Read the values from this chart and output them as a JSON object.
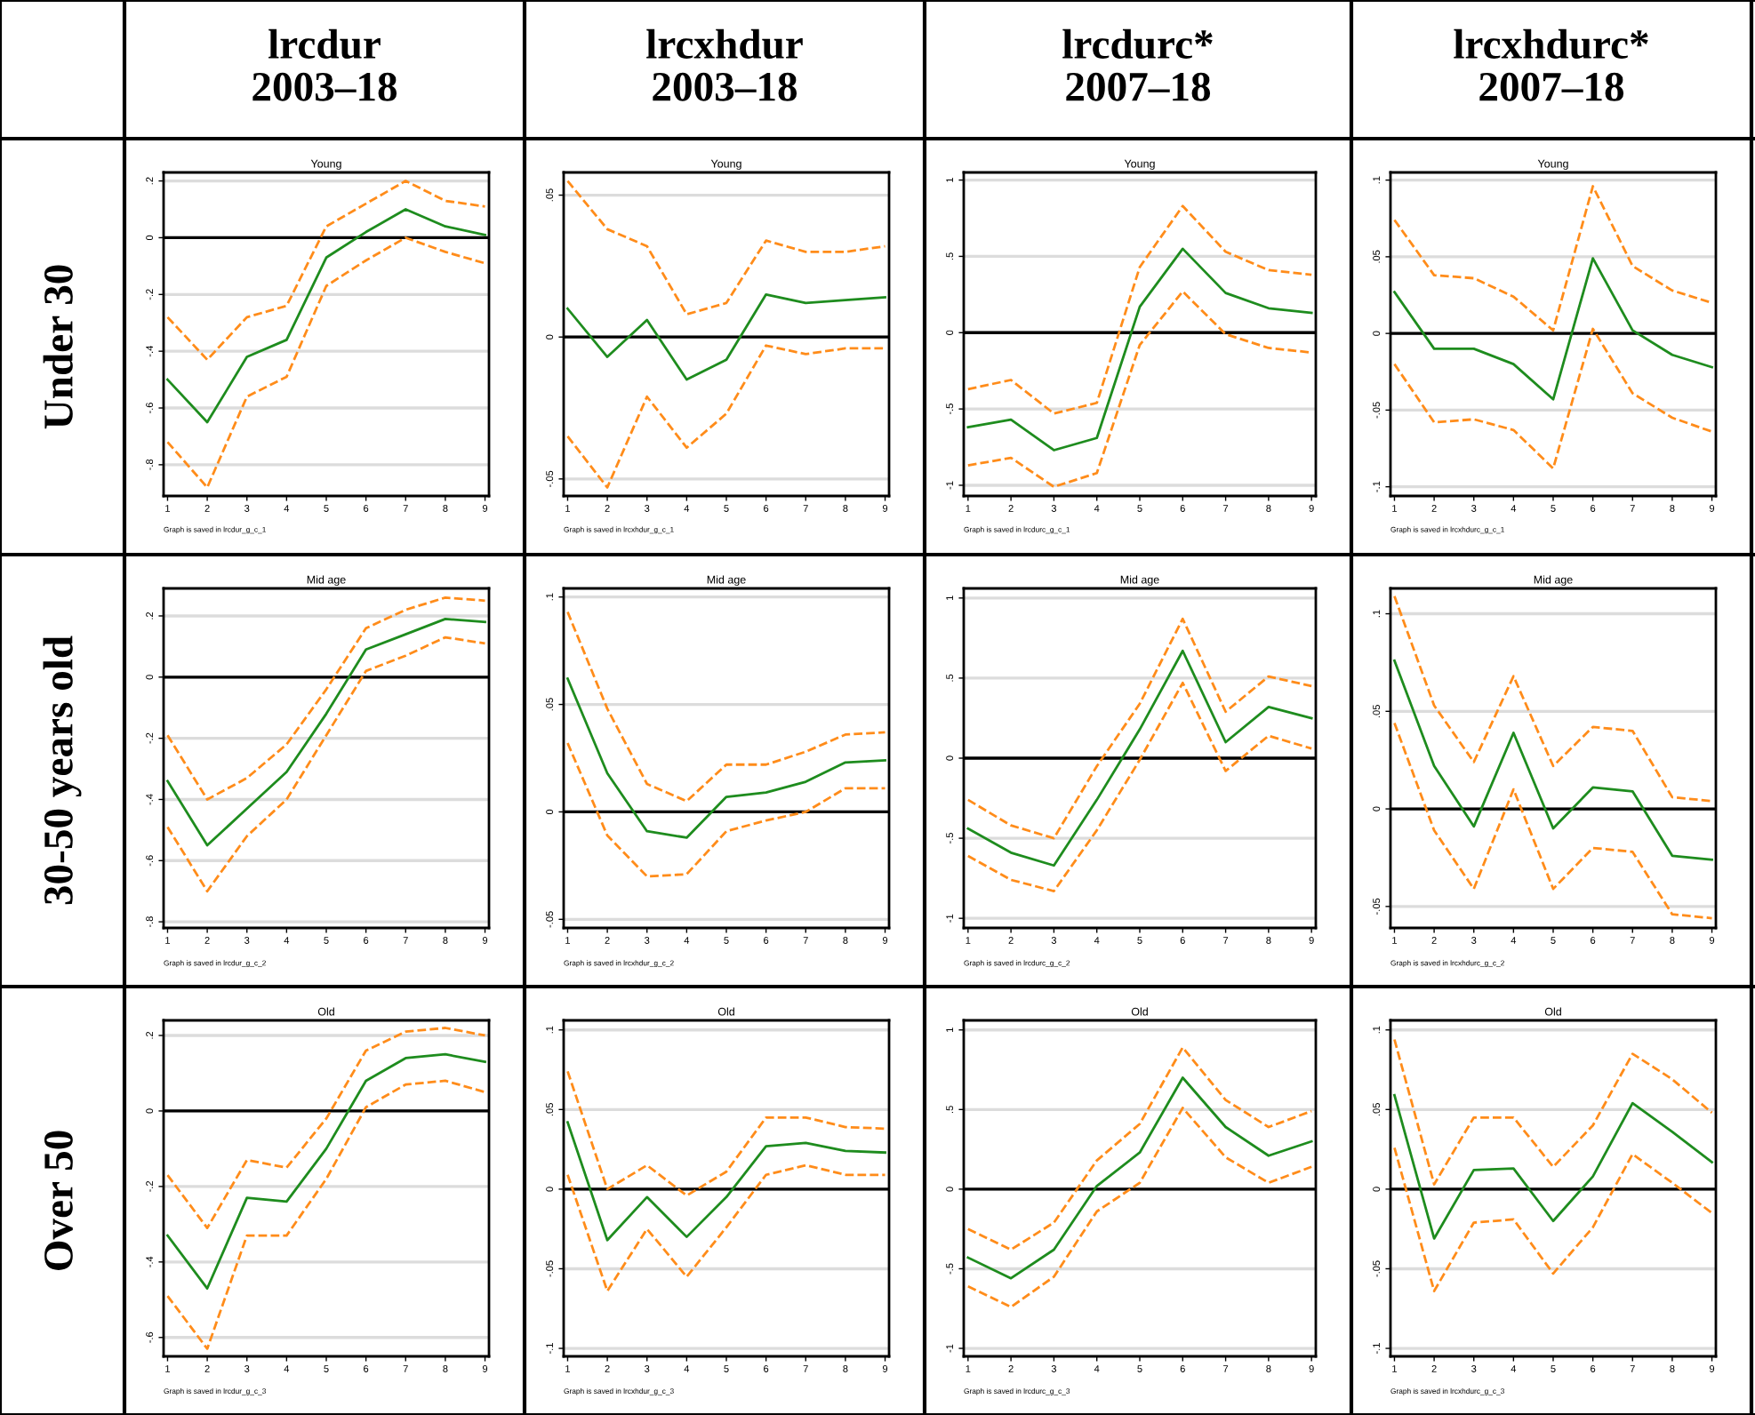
{
  "chart_data": [
    {
      "type": "other",
      "title": "lrcdur",
      "subtitle": "2003–18"
    },
    {
      "type": "other",
      "title": "lrcxhdur",
      "subtitle": "2003–18"
    },
    {
      "type": "other",
      "title": "lrcdurc*",
      "subtitle": "2007–18"
    },
    {
      "type": "other",
      "title": "lrcxhdurc*",
      "subtitle": "2007–18"
    },
    {
      "type": "other",
      "title": "Under 30"
    },
    {
      "type": "line",
      "title": "Young",
      "annotations": [
        "Graph is saved in lrcdur_g_c_1"
      ],
      "x": [
        1,
        2,
        3,
        4,
        5,
        6,
        7,
        8,
        9
      ],
      "xlim": [
        0.9,
        9.1
      ],
      "xticks": [
        1,
        2,
        3,
        4,
        5,
        6,
        7,
        8,
        9
      ],
      "ylim": [
        -0.91,
        0.23
      ],
      "yticks": [
        {
          "value": 0.2,
          "label": ".2"
        },
        0,
        {
          "value": -0.2,
          "label": "-.2"
        },
        {
          "value": -0.4,
          "label": "-.4"
        },
        {
          "value": -0.6,
          "label": "-.6"
        },
        {
          "value": -0.8,
          "label": "-.8"
        }
      ],
      "grid": "y",
      "ref_lines": [
        {
          "axis": "y",
          "value": 0,
          "color": "#000000"
        }
      ],
      "series": [
        {
          "color": "#1e8c1e",
          "line_style": "solid",
          "values": [
            -0.5,
            -0.65,
            -0.42,
            -0.36,
            -0.07,
            0.02,
            0.1,
            0.04,
            0.01
          ]
        },
        {
          "color": "#ff8c1a",
          "line_style": "dashed",
          "values": [
            -0.28,
            -0.43,
            -0.28,
            -0.24,
            0.04,
            0.12,
            0.2,
            0.13,
            0.11
          ]
        },
        {
          "color": "#ff8c1a",
          "line_style": "dashed",
          "values": [
            -0.72,
            -0.88,
            -0.56,
            -0.49,
            -0.17,
            -0.08,
            0.0,
            -0.05,
            -0.09
          ]
        }
      ]
    },
    {
      "type": "line",
      "title": "Young",
      "annotations": [
        "Graph is saved in lrcxhdur_g_c_1"
      ],
      "x": [
        1,
        2,
        3,
        4,
        5,
        6,
        7,
        8,
        9
      ],
      "xlim": [
        0.9,
        9.1
      ],
      "xticks": [
        1,
        2,
        3,
        4,
        5,
        6,
        7,
        8,
        9
      ],
      "ylim": [
        -0.056,
        0.058
      ],
      "yticks": [
        {
          "value": 0.05,
          "label": ".05"
        },
        0,
        {
          "value": -0.05,
          "label": "-.05"
        }
      ],
      "grid": "y",
      "ref_lines": [
        {
          "axis": "y",
          "value": 0,
          "color": "#000000"
        }
      ],
      "series": [
        {
          "color": "#1e8c1e",
          "line_style": "solid",
          "values": [
            0.01,
            -0.007,
            0.006,
            -0.015,
            -0.008,
            0.015,
            0.012,
            0.013,
            0.014
          ]
        },
        {
          "color": "#ff8c1a",
          "line_style": "dashed",
          "values": [
            0.055,
            0.038,
            0.032,
            0.008,
            0.012,
            0.034,
            0.03,
            0.03,
            0.032
          ]
        },
        {
          "color": "#ff8c1a",
          "line_style": "dashed",
          "values": [
            -0.035,
            -0.053,
            -0.021,
            -0.039,
            -0.027,
            -0.003,
            -0.006,
            -0.004,
            -0.004
          ]
        }
      ]
    },
    {
      "type": "line",
      "title": "Young",
      "annotations": [
        "Graph is saved in lrcdurc_g_c_1"
      ],
      "x": [
        1,
        2,
        3,
        4,
        5,
        6,
        7,
        8,
        9
      ],
      "xlim": [
        0.9,
        9.1
      ],
      "xticks": [
        1,
        2,
        3,
        4,
        5,
        6,
        7,
        8,
        9
      ],
      "ylim": [
        -1.07,
        1.05
      ],
      "yticks": [
        1,
        {
          "value": 0.5,
          "label": ".5"
        },
        0,
        {
          "value": -0.5,
          "label": "-.5"
        },
        -1
      ],
      "grid": "y",
      "ref_lines": [
        {
          "axis": "y",
          "value": 0,
          "color": "#000000"
        }
      ],
      "series": [
        {
          "color": "#1e8c1e",
          "line_style": "solid",
          "values": [
            -0.62,
            -0.57,
            -0.77,
            -0.69,
            0.17,
            0.55,
            0.26,
            0.16,
            0.13
          ]
        },
        {
          "color": "#ff8c1a",
          "line_style": "dashed",
          "values": [
            -0.37,
            -0.31,
            -0.53,
            -0.46,
            0.43,
            0.83,
            0.53,
            0.41,
            0.38
          ]
        },
        {
          "color": "#ff8c1a",
          "line_style": "dashed",
          "values": [
            -0.87,
            -0.82,
            -1.01,
            -0.92,
            -0.08,
            0.27,
            -0.01,
            -0.1,
            -0.13
          ]
        }
      ]
    },
    {
      "type": "line",
      "title": "Young",
      "annotations": [
        "Graph is saved in lrcxhdurc_g_c_1"
      ],
      "x": [
        1,
        2,
        3,
        4,
        5,
        6,
        7,
        8,
        9
      ],
      "xlim": [
        0.9,
        9.1
      ],
      "xticks": [
        1,
        2,
        3,
        4,
        5,
        6,
        7,
        8,
        9
      ],
      "ylim": [
        -0.106,
        0.105
      ],
      "yticks": [
        {
          "value": 0.1,
          "label": ".1"
        },
        {
          "value": 0.05,
          "label": ".05"
        },
        0,
        {
          "value": -0.05,
          "label": "-.05"
        },
        {
          "value": -0.1,
          "label": "-.1"
        }
      ],
      "grid": "y",
      "ref_lines": [
        {
          "axis": "y",
          "value": 0,
          "color": "#000000"
        }
      ],
      "series": [
        {
          "color": "#1e8c1e",
          "line_style": "solid",
          "values": [
            0.027,
            -0.01,
            -0.01,
            -0.02,
            -0.043,
            0.049,
            0.002,
            -0.014,
            -0.022
          ]
        },
        {
          "color": "#ff8c1a",
          "line_style": "dashed",
          "values": [
            0.074,
            0.038,
            0.036,
            0.024,
            0.002,
            0.096,
            0.044,
            0.028,
            0.02
          ]
        },
        {
          "color": "#ff8c1a",
          "line_style": "dashed",
          "values": [
            -0.02,
            -0.058,
            -0.056,
            -0.063,
            -0.088,
            0.003,
            -0.039,
            -0.055,
            -0.064
          ]
        }
      ]
    },
    {
      "type": "other",
      "title": "30-50 years old"
    },
    {
      "type": "line",
      "title": "Mid age",
      "annotations": [
        "Graph is saved in lrcdur_g_c_2"
      ],
      "x": [
        1,
        2,
        3,
        4,
        5,
        6,
        7,
        8,
        9
      ],
      "xlim": [
        0.9,
        9.1
      ],
      "xticks": [
        1,
        2,
        3,
        4,
        5,
        6,
        7,
        8,
        9
      ],
      "ylim": [
        -0.82,
        0.29
      ],
      "yticks": [
        {
          "value": 0.2,
          "label": ".2"
        },
        0,
        {
          "value": -0.2,
          "label": "-.2"
        },
        {
          "value": -0.4,
          "label": "-.4"
        },
        {
          "value": -0.6,
          "label": "-.6"
        },
        {
          "value": -0.8,
          "label": "-.8"
        }
      ],
      "grid": "y",
      "ref_lines": [
        {
          "axis": "y",
          "value": 0,
          "color": "#000000"
        }
      ],
      "series": [
        {
          "color": "#1e8c1e",
          "line_style": "solid",
          "values": [
            -0.34,
            -0.55,
            -0.43,
            -0.31,
            -0.12,
            0.09,
            0.14,
            0.19,
            0.18
          ]
        },
        {
          "color": "#ff8c1a",
          "line_style": "dashed",
          "values": [
            -0.19,
            -0.4,
            -0.33,
            -0.22,
            -0.04,
            0.16,
            0.22,
            0.26,
            0.25
          ]
        },
        {
          "color": "#ff8c1a",
          "line_style": "dashed",
          "values": [
            -0.49,
            -0.7,
            -0.52,
            -0.4,
            -0.19,
            0.02,
            0.07,
            0.13,
            0.11
          ]
        }
      ]
    },
    {
      "type": "line",
      "title": "Mid age",
      "annotations": [
        "Graph is saved in lrcxhdur_g_c_2"
      ],
      "x": [
        1,
        2,
        3,
        4,
        5,
        6,
        7,
        8,
        9
      ],
      "xlim": [
        0.9,
        9.1
      ],
      "xticks": [
        1,
        2,
        3,
        4,
        5,
        6,
        7,
        8,
        9
      ],
      "ylim": [
        -0.054,
        0.104
      ],
      "yticks": [
        {
          "value": 0.1,
          "label": ".1"
        },
        {
          "value": 0.05,
          "label": ".05"
        },
        0,
        {
          "value": -0.05,
          "label": "-.05"
        }
      ],
      "grid": "y",
      "ref_lines": [
        {
          "axis": "y",
          "value": 0,
          "color": "#000000"
        }
      ],
      "series": [
        {
          "color": "#1e8c1e",
          "line_style": "solid",
          "values": [
            0.062,
            0.018,
            -0.009,
            -0.012,
            0.007,
            0.009,
            0.014,
            0.023,
            0.024
          ]
        },
        {
          "color": "#ff8c1a",
          "line_style": "dashed",
          "values": [
            0.093,
            0.048,
            0.013,
            0.005,
            0.022,
            0.022,
            0.028,
            0.036,
            0.037
          ]
        },
        {
          "color": "#ff8c1a",
          "line_style": "dashed",
          "values": [
            0.032,
            -0.011,
            -0.03,
            -0.029,
            -0.009,
            -0.004,
            0.0,
            0.011,
            0.011
          ]
        }
      ]
    },
    {
      "type": "line",
      "title": "Mid age",
      "annotations": [
        "Graph is saved in lrcdurc_g_c_2"
      ],
      "x": [
        1,
        2,
        3,
        4,
        5,
        6,
        7,
        8,
        9
      ],
      "xlim": [
        0.9,
        9.1
      ],
      "xticks": [
        1,
        2,
        3,
        4,
        5,
        6,
        7,
        8,
        9
      ],
      "ylim": [
        -1.06,
        1.06
      ],
      "yticks": [
        1,
        {
          "value": 0.5,
          "label": ".5"
        },
        0,
        {
          "value": -0.5,
          "label": "-.5"
        },
        -1
      ],
      "grid": "y",
      "ref_lines": [
        {
          "axis": "y",
          "value": 0,
          "color": "#000000"
        }
      ],
      "series": [
        {
          "color": "#1e8c1e",
          "line_style": "solid",
          "values": [
            -0.44,
            -0.59,
            -0.67,
            -0.26,
            0.18,
            0.67,
            0.1,
            0.32,
            0.25
          ]
        },
        {
          "color": "#ff8c1a",
          "line_style": "dashed",
          "values": [
            -0.26,
            -0.42,
            -0.5,
            -0.05,
            0.34,
            0.87,
            0.29,
            0.51,
            0.45
          ]
        },
        {
          "color": "#ff8c1a",
          "line_style": "dashed",
          "values": [
            -0.61,
            -0.76,
            -0.83,
            -0.45,
            -0.01,
            0.47,
            -0.08,
            0.14,
            0.06
          ]
        }
      ]
    },
    {
      "type": "line",
      "title": "Mid age",
      "annotations": [
        "Graph is saved in lrcxhdurc_g_c_2"
      ],
      "x": [
        1,
        2,
        3,
        4,
        5,
        6,
        7,
        8,
        9
      ],
      "xlim": [
        0.9,
        9.1
      ],
      "xticks": [
        1,
        2,
        3,
        4,
        5,
        6,
        7,
        8,
        9
      ],
      "ylim": [
        -0.061,
        0.113
      ],
      "yticks": [
        {
          "value": 0.1,
          "label": ".1"
        },
        {
          "value": 0.05,
          "label": ".05"
        },
        0,
        {
          "value": -0.05,
          "label": "-.05"
        }
      ],
      "grid": "y",
      "ref_lines": [
        {
          "axis": "y",
          "value": 0,
          "color": "#000000"
        }
      ],
      "series": [
        {
          "color": "#1e8c1e",
          "line_style": "solid",
          "values": [
            0.076,
            0.022,
            -0.009,
            0.039,
            -0.01,
            0.011,
            0.009,
            -0.024,
            -0.026
          ]
        },
        {
          "color": "#ff8c1a",
          "line_style": "dashed",
          "values": [
            0.109,
            0.053,
            0.024,
            0.068,
            0.022,
            0.042,
            0.04,
            0.006,
            0.004
          ]
        },
        {
          "color": "#ff8c1a",
          "line_style": "dashed",
          "values": [
            0.044,
            -0.011,
            -0.041,
            0.01,
            -0.041,
            -0.02,
            -0.022,
            -0.054,
            -0.056
          ]
        }
      ]
    },
    {
      "type": "other",
      "title": "Over 50"
    },
    {
      "type": "line",
      "title": "Old",
      "annotations": [
        "Graph is saved in lrcdur_g_c_3"
      ],
      "x": [
        1,
        2,
        3,
        4,
        5,
        6,
        7,
        8,
        9
      ],
      "xlim": [
        0.9,
        9.1
      ],
      "xticks": [
        1,
        2,
        3,
        4,
        5,
        6,
        7,
        8,
        9
      ],
      "ylim": [
        -0.65,
        0.24
      ],
      "yticks": [
        {
          "value": 0.2,
          "label": ".2"
        },
        0,
        {
          "value": -0.2,
          "label": "-.2"
        },
        {
          "value": -0.4,
          "label": "-.4"
        },
        {
          "value": -0.6,
          "label": "-.6"
        }
      ],
      "grid": "y",
      "ref_lines": [
        {
          "axis": "y",
          "value": 0,
          "color": "#000000"
        }
      ],
      "series": [
        {
          "color": "#1e8c1e",
          "line_style": "solid",
          "values": [
            -0.33,
            -0.47,
            -0.23,
            -0.24,
            -0.1,
            0.08,
            0.14,
            0.15,
            0.13
          ]
        },
        {
          "color": "#ff8c1a",
          "line_style": "dashed",
          "values": [
            -0.17,
            -0.31,
            -0.13,
            -0.15,
            -0.02,
            0.16,
            0.21,
            0.22,
            0.2
          ]
        },
        {
          "color": "#ff8c1a",
          "line_style": "dashed",
          "values": [
            -0.49,
            -0.63,
            -0.33,
            -0.33,
            -0.18,
            0.01,
            0.07,
            0.08,
            0.05
          ]
        }
      ]
    },
    {
      "type": "line",
      "title": "Old",
      "annotations": [
        "Graph is saved in lrcxhdur_g_c_3"
      ],
      "x": [
        1,
        2,
        3,
        4,
        5,
        6,
        7,
        8,
        9
      ],
      "xlim": [
        0.9,
        9.1
      ],
      "xticks": [
        1,
        2,
        3,
        4,
        5,
        6,
        7,
        8,
        9
      ],
      "ylim": [
        -0.105,
        0.106
      ],
      "yticks": [
        {
          "value": 0.1,
          "label": ".1"
        },
        {
          "value": 0.05,
          "label": ".05"
        },
        0,
        {
          "value": -0.05,
          "label": "-.05"
        },
        {
          "value": -0.1,
          "label": "-.1"
        }
      ],
      "grid": "y",
      "ref_lines": [
        {
          "axis": "y",
          "value": 0,
          "color": "#000000"
        }
      ],
      "series": [
        {
          "color": "#1e8c1e",
          "line_style": "solid",
          "values": [
            0.042,
            -0.032,
            -0.005,
            -0.03,
            -0.005,
            0.027,
            0.029,
            0.024,
            0.023
          ]
        },
        {
          "color": "#ff8c1a",
          "line_style": "dashed",
          "values": [
            0.074,
            0.0,
            0.015,
            -0.004,
            0.011,
            0.045,
            0.045,
            0.039,
            0.038
          ]
        },
        {
          "color": "#ff8c1a",
          "line_style": "dashed",
          "values": [
            0.009,
            -0.064,
            -0.025,
            -0.055,
            -0.024,
            0.009,
            0.015,
            0.009,
            0.009
          ]
        }
      ]
    },
    {
      "type": "line",
      "title": "Old",
      "annotations": [
        "Graph is saved in lrcdurc_g_c_3"
      ],
      "x": [
        1,
        2,
        3,
        4,
        5,
        6,
        7,
        8,
        9
      ],
      "xlim": [
        0.9,
        9.1
      ],
      "xticks": [
        1,
        2,
        3,
        4,
        5,
        6,
        7,
        8,
        9
      ],
      "ylim": [
        -1.05,
        1.06
      ],
      "yticks": [
        1,
        {
          "value": 0.5,
          "label": ".5"
        },
        0,
        {
          "value": -0.5,
          "label": "-.5"
        },
        -1
      ],
      "grid": "y",
      "ref_lines": [
        {
          "axis": "y",
          "value": 0,
          "color": "#000000"
        }
      ],
      "series": [
        {
          "color": "#1e8c1e",
          "line_style": "solid",
          "values": [
            -0.43,
            -0.56,
            -0.38,
            0.02,
            0.23,
            0.7,
            0.39,
            0.21,
            0.3
          ]
        },
        {
          "color": "#ff8c1a",
          "line_style": "dashed",
          "values": [
            -0.25,
            -0.38,
            -0.21,
            0.18,
            0.41,
            0.89,
            0.56,
            0.39,
            0.49
          ]
        },
        {
          "color": "#ff8c1a",
          "line_style": "dashed",
          "values": [
            -0.61,
            -0.74,
            -0.55,
            -0.14,
            0.04,
            0.51,
            0.2,
            0.04,
            0.14
          ]
        }
      ]
    },
    {
      "type": "line",
      "title": "Old",
      "annotations": [
        "Graph is saved in lrcxhdurc_g_c_3"
      ],
      "x": [
        1,
        2,
        3,
        4,
        5,
        6,
        7,
        8,
        9
      ],
      "xlim": [
        0.9,
        9.1
      ],
      "xticks": [
        1,
        2,
        3,
        4,
        5,
        6,
        7,
        8,
        9
      ],
      "ylim": [
        -0.105,
        0.106
      ],
      "yticks": [
        {
          "value": 0.1,
          "label": ".1"
        },
        {
          "value": 0.05,
          "label": ".05"
        },
        0,
        {
          "value": -0.05,
          "label": "-.05"
        },
        {
          "value": -0.1,
          "label": "-.1"
        }
      ],
      "grid": "y",
      "ref_lines": [
        {
          "axis": "y",
          "value": 0,
          "color": "#000000"
        }
      ],
      "series": [
        {
          "color": "#1e8c1e",
          "line_style": "solid",
          "values": [
            0.059,
            -0.031,
            0.012,
            0.013,
            -0.02,
            0.008,
            0.054,
            0.036,
            0.017
          ]
        },
        {
          "color": "#ff8c1a",
          "line_style": "dashed",
          "values": [
            0.094,
            0.003,
            0.045,
            0.045,
            0.014,
            0.04,
            0.085,
            0.069,
            0.048
          ]
        },
        {
          "color": "#ff8c1a",
          "line_style": "dashed",
          "values": [
            0.026,
            -0.064,
            -0.021,
            -0.019,
            -0.053,
            -0.024,
            0.022,
            0.004,
            -0.015
          ]
        }
      ]
    }
  ]
}
